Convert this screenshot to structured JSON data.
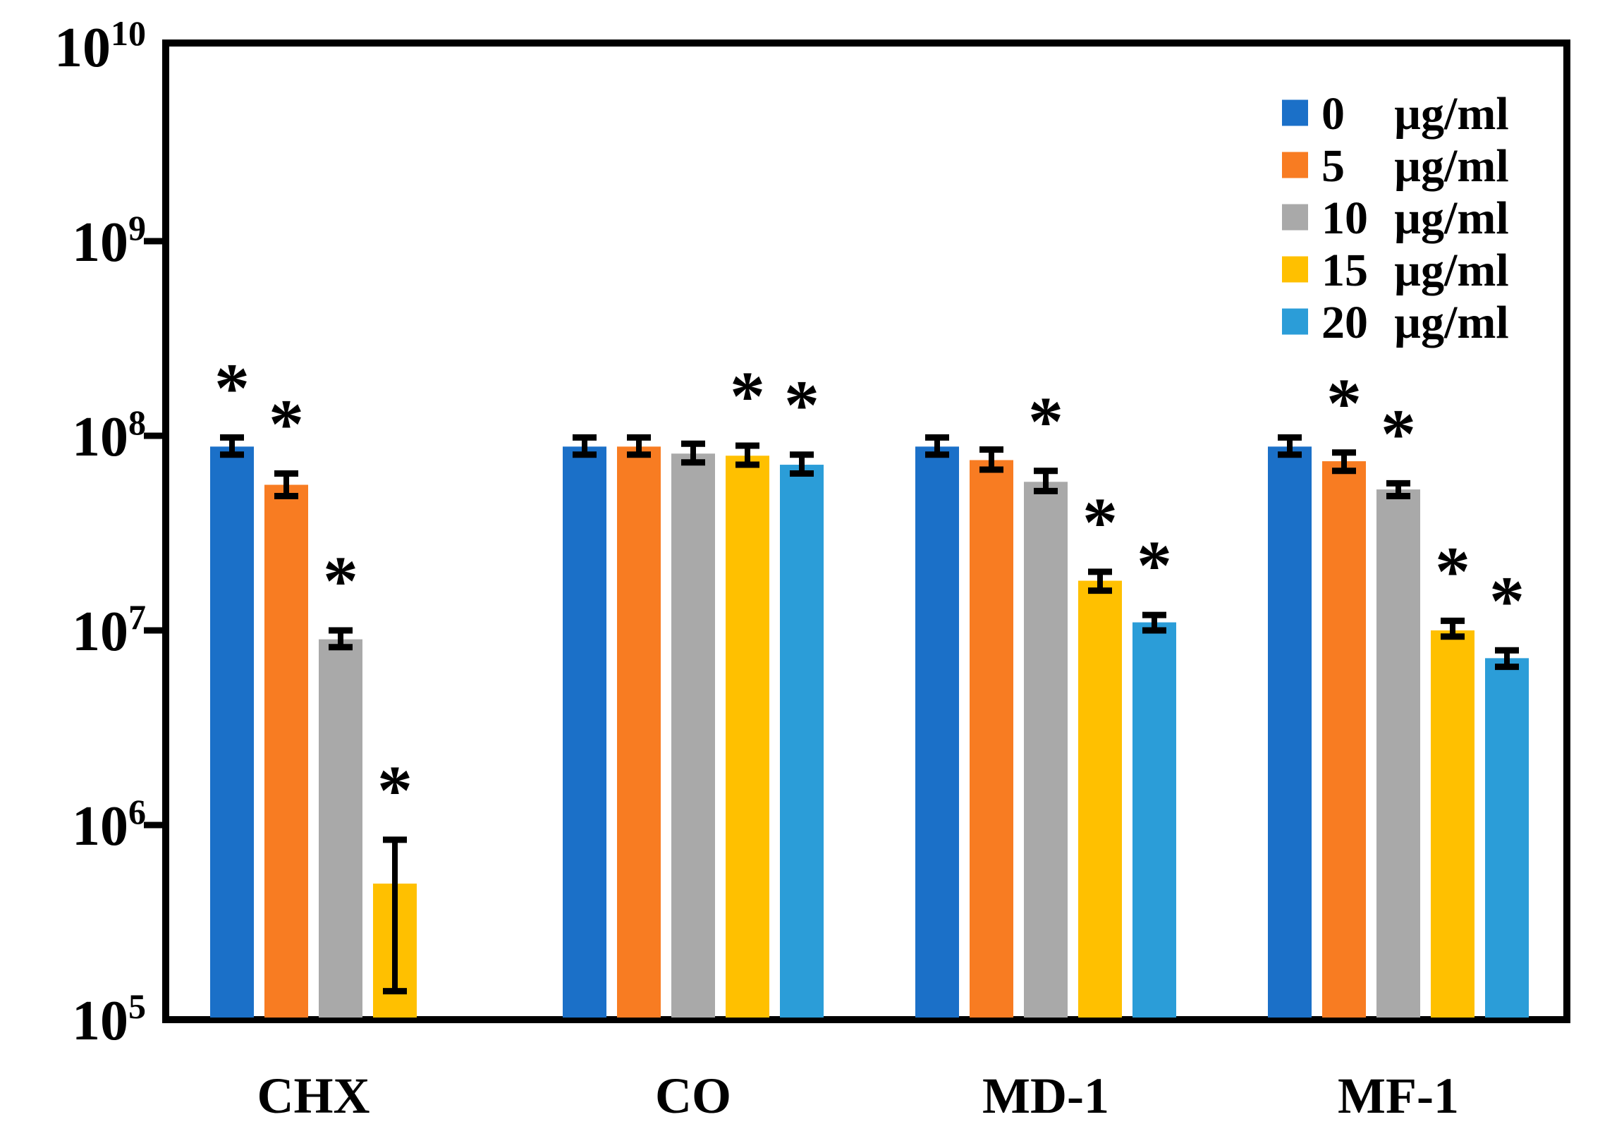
{
  "chart_data": {
    "type": "bar",
    "subtype": "grouped-vertical",
    "title": "",
    "xlabel": "",
    "ylabel": "",
    "y_scale": "log",
    "ylim": [
      100000.0,
      10000000000.0
    ],
    "y_tick_exponents": [
      5,
      6,
      7,
      8,
      9,
      10
    ],
    "y_tick_base": "10",
    "grid": false,
    "frame": true,
    "categories": [
      "CHX",
      "CO",
      "MD-1",
      "MF-1"
    ],
    "significance_marker": "*",
    "series": [
      {
        "name": "0 µg/ml",
        "color": "#1B70C8",
        "values": [
          88000000.0,
          88000000.0,
          88000000.0,
          88000000.0
        ],
        "err_hi": [
          98000000.0,
          98000000.0,
          98000000.0,
          98000000.0
        ],
        "err_lo": [
          80000000.0,
          80000000.0,
          80000000.0,
          80000000.0
        ],
        "sig": [
          true,
          false,
          false,
          false
        ]
      },
      {
        "name": "5 µg/ml",
        "color": "#F87C22",
        "values": [
          56000000.0,
          88000000.0,
          75000000.0,
          74000000.0
        ],
        "err_hi": [
          64000000.0,
          98000000.0,
          85000000.0,
          82000000.0
        ],
        "err_lo": [
          49000000.0,
          80000000.0,
          67000000.0,
          66000000.0
        ],
        "sig": [
          true,
          false,
          false,
          true
        ]
      },
      {
        "name": "10 µg/ml",
        "color": "#A9A9A9",
        "values": [
          9000000.0,
          81000000.0,
          58000000.0,
          53000000.0
        ],
        "err_hi": [
          10000000.0,
          91000000.0,
          66000000.0,
          57000000.0
        ],
        "err_lo": [
          8200000.0,
          73000000.0,
          52000000.0,
          49000000.0
        ],
        "sig": [
          true,
          false,
          true,
          true
        ]
      },
      {
        "name": "15 µg/ml",
        "color": "#FFC000",
        "values": [
          500000.0,
          79000000.0,
          18000000.0,
          10000000.0
        ],
        "err_hi": [
          840000.0,
          89000000.0,
          20000000.0,
          11200000.0
        ],
        "err_lo": [
          140000.0,
          71000000.0,
          16000000.0,
          9300000.0
        ],
        "sig": [
          true,
          true,
          true,
          true
        ]
      },
      {
        "name": "20 µg/ml",
        "color": "#2B9DD8",
        "values": [
          null,
          71000000.0,
          11000000.0,
          7200000.0
        ],
        "err_hi": [
          null,
          80000000.0,
          12000000.0,
          7900000.0
        ],
        "err_lo": [
          null,
          64000000.0,
          10000000.0,
          6500000.0
        ],
        "sig": [
          false,
          true,
          true,
          true
        ]
      }
    ],
    "legend": {
      "position": "top-right",
      "items": [
        {
          "amount": "0",
          "unit": "µg/ml",
          "color": "#1B70C8"
        },
        {
          "amount": "5",
          "unit": "µg/ml",
          "color": "#F87C22"
        },
        {
          "amount": "10",
          "unit": "µg/ml",
          "color": "#A9A9A9"
        },
        {
          "amount": "15",
          "unit": "µg/ml",
          "color": "#FFC000"
        },
        {
          "amount": "20",
          "unit": "µg/ml",
          "color": "#2B9DD8"
        }
      ]
    },
    "colors": {
      "axis": "#000000",
      "text": "#000000",
      "background": "#ffffff"
    }
  }
}
